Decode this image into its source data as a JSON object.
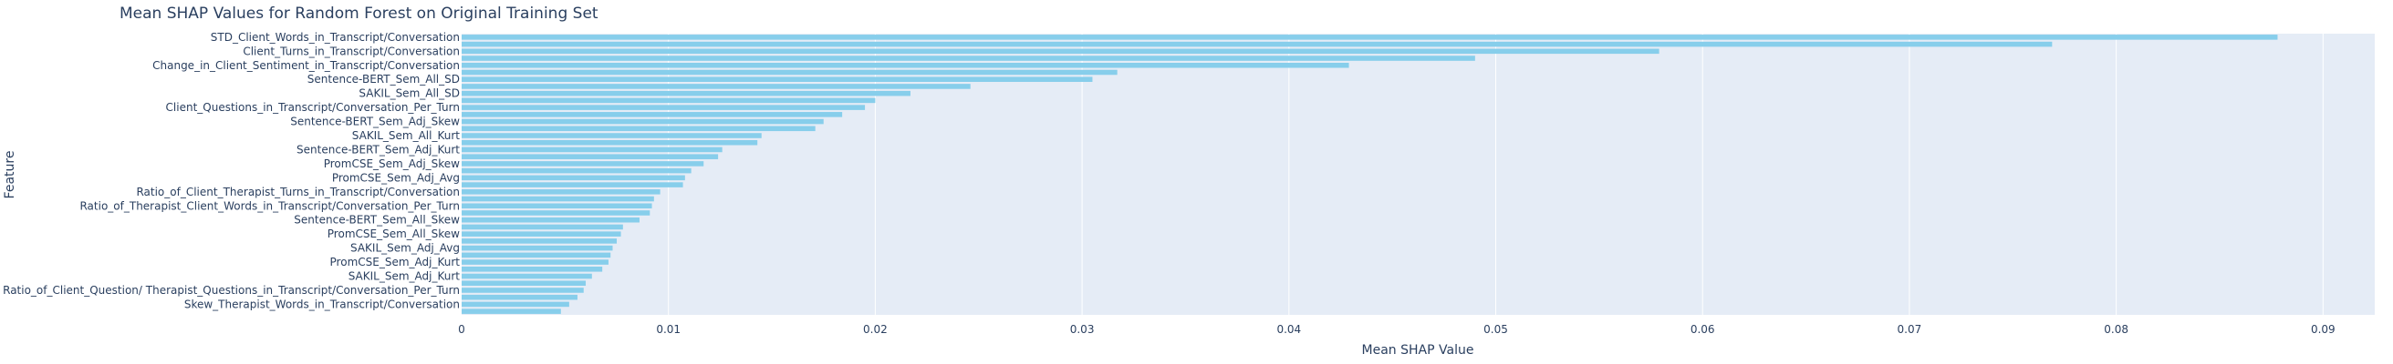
{
  "chart_data": {
    "type": "bar",
    "orientation": "horizontal",
    "title": "Mean SHAP Values for Random Forest on Original Training Set",
    "xlabel": "Mean SHAP Value",
    "ylabel": "Feature",
    "xlim": [
      0,
      0.0925
    ],
    "x_ticks": [
      "0",
      "0.01",
      "0.02",
      "0.03",
      "0.04",
      "0.05",
      "0.06",
      "0.07",
      "0.08",
      "0.09"
    ],
    "x_tick_values": [
      0,
      0.01,
      0.02,
      0.03,
      0.04,
      0.05,
      0.06,
      0.07,
      0.08,
      0.09
    ],
    "grid": true,
    "bar_color": "#87ceeb",
    "plot_bg": "#e5ecf6",
    "categories": [
      "STD_Client_Words_in_Transcript/Conversation",
      "",
      "Client_Turns_in_Transcript/Conversation",
      "",
      "Change_in_Client_Sentiment_in_Transcript/Conversation",
      "",
      "Sentence-BERT_Sem_All_SD",
      "",
      "SAKIL_Sem_All_SD",
      "",
      "Client_Questions_in_Transcript/Conversation_Per_Turn",
      "",
      "Sentence-BERT_Sem_Adj_Skew",
      "",
      "SAKIL_Sem_All_Kurt",
      "",
      "Sentence-BERT_Sem_Adj_Kurt",
      "",
      "PromCSE_Sem_Adj_Skew",
      "",
      "PromCSE_Sem_Adj_Avg",
      "",
      "Ratio_of_Client_Therapist_Turns_in_Transcript/Conversation",
      "",
      "Ratio_of_Therapist_Client_Words_in_Transcript/Conversation_Per_Turn",
      "",
      "Sentence-BERT_Sem_All_Skew",
      "",
      "PromCSE_Sem_All_Skew",
      "",
      "SAKIL_Sem_Adj_Avg",
      "",
      "PromCSE_Sem_Adj_Kurt",
      "",
      "SAKIL_Sem_Adj_Kurt",
      "",
      "Ratio_of_Client_Question/ Therapist_Questions_in_Transcript/Conversation_Per_Turn",
      "",
      "Skew_Therapist_Words_in_Transcript/Conversation",
      ""
    ],
    "values": [
      0.0878,
      0.0769,
      0.0579,
      0.049,
      0.0429,
      0.0317,
      0.0305,
      0.0246,
      0.0217,
      0.02,
      0.0195,
      0.0184,
      0.0175,
      0.0171,
      0.0145,
      0.0143,
      0.0126,
      0.0124,
      0.0117,
      0.0111,
      0.0108,
      0.0107,
      0.0096,
      0.0093,
      0.0092,
      0.0091,
      0.0086,
      0.0078,
      0.0077,
      0.0075,
      0.0073,
      0.0072,
      0.0071,
      0.0068,
      0.0063,
      0.006,
      0.0059,
      0.0056,
      0.0052,
      0.0048
    ]
  }
}
